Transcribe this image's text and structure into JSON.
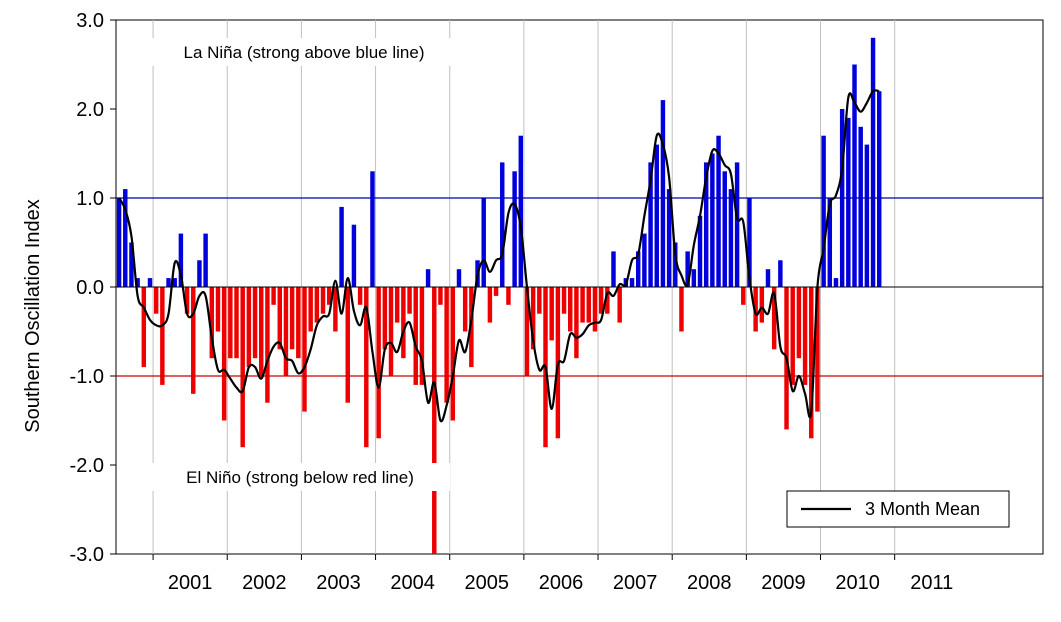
{
  "chart_data": {
    "type": "bar",
    "title": "",
    "ylabel": "Southern Oscillation Index",
    "xlabel": "",
    "ylim": [
      -3.0,
      3.0
    ],
    "yticks": [
      "3.0",
      "2.0",
      "1.0",
      "0.0",
      "-1.0",
      "-2.0",
      "-3.0"
    ],
    "ytick_values": [
      3,
      2,
      1,
      0,
      -1,
      -2,
      -3
    ],
    "xticks": [
      "2001",
      "2002",
      "2003",
      "2004",
      "2005",
      "2006",
      "2007",
      "2008",
      "2009",
      "2010",
      "2011"
    ],
    "start": "2000-07",
    "months_shown": 150,
    "grid_vertical": true,
    "grid_horizontal": false,
    "positive_color": "#0000dd",
    "negative_color": "#ee0000",
    "threshold_lines": [
      {
        "value": 1.0,
        "color": "#0000aa"
      },
      {
        "value": -1.0,
        "color": "#cc0000"
      }
    ],
    "annotations": {
      "la_nina": "La Niña (strong above blue line)",
      "el_nino": "El Niño (strong below red line)"
    },
    "legend": {
      "label": "3 Month Mean",
      "position": "bottom-right",
      "color": "#000000"
    },
    "monthly_values": [
      1.0,
      1.1,
      0.5,
      0.1,
      -0.9,
      0.1,
      -0.3,
      -1.1,
      0.1,
      0.1,
      0.6,
      -0.3,
      -1.2,
      0.3,
      0.6,
      -0.8,
      -0.5,
      -1.5,
      -0.8,
      -0.8,
      -1.8,
      -0.9,
      -0.8,
      -1.0,
      -1.3,
      -0.2,
      -0.7,
      -1.0,
      -0.7,
      -0.8,
      -1.4,
      -0.5,
      -0.4,
      -0.3,
      -0.2,
      -0.5,
      0.9,
      -1.3,
      0.7,
      -0.2,
      -1.8,
      1.3,
      -1.7,
      -0.7,
      -1.0,
      -0.4,
      -0.8,
      -0.3,
      -1.1,
      -1.1,
      0.2,
      -3.0,
      -0.2,
      -1.3,
      -1.5,
      0.2,
      -0.5,
      -0.9,
      0.3,
      1.0,
      -0.4,
      -0.1,
      1.4,
      -0.2,
      1.3,
      1.7,
      -1.0,
      -0.7,
      -0.3,
      -1.8,
      -0.6,
      -1.7,
      -0.3,
      -0.5,
      -0.8,
      -0.4,
      -0.4,
      -0.5,
      -0.3,
      -0.3,
      0.4,
      -0.4,
      0.1,
      0.1,
      0.4,
      0.6,
      1.4,
      1.6,
      2.1,
      1.1,
      0.5,
      -0.5,
      0.4,
      0.2,
      0.8,
      1.4,
      1.5,
      1.7,
      1.3,
      1.1,
      1.4,
      -0.2,
      1.0,
      -0.5,
      -0.4,
      0.2,
      -0.7,
      0.3,
      -1.6,
      -1.1,
      -0.8,
      -1.1,
      -1.7,
      -1.4,
      1.7,
      1.0,
      0.1,
      2.0,
      1.9,
      2.5,
      1.8,
      1.6,
      2.8,
      2.2
    ],
    "three_month_mean": [
      1.0,
      0.87,
      0.57,
      -0.1,
      -0.23,
      -0.37,
      -0.43,
      -0.43,
      -0.3,
      0.27,
      0.13,
      -0.3,
      -0.3,
      -0.1,
      -0.1,
      -0.57,
      -0.93,
      -0.93,
      -1.03,
      -1.13,
      -1.17,
      -0.9,
      -0.9,
      -1.03,
      -0.83,
      -0.67,
      -0.63,
      -0.8,
      -0.83,
      -0.97,
      -0.9,
      -0.7,
      -0.43,
      -0.33,
      -0.3,
      0.07,
      -0.3,
      0.1,
      -0.27,
      -0.43,
      -0.23,
      -0.73,
      -1.13,
      -0.7,
      -0.63,
      -0.73,
      -0.5,
      -0.4,
      -0.67,
      -0.83,
      -1.3,
      -1.07,
      -1.5,
      -1.33,
      -1.0,
      -0.6,
      -0.73,
      -0.37,
      0.13,
      0.3,
      0.17,
      0.3,
      0.37,
      0.83,
      0.93,
      0.67,
      0.0,
      -0.6,
      -0.93,
      -0.9,
      -1.37,
      -0.87,
      -0.83,
      -0.53,
      -0.57,
      -0.53,
      -0.43,
      -0.4,
      -0.37,
      -0.07,
      -0.1,
      0.03,
      0.03,
      0.3,
      0.37,
      0.8,
      1.2,
      1.7,
      1.6,
      1.23,
      0.37,
      0.13,
      0.03,
      0.47,
      0.8,
      1.23,
      1.53,
      1.5,
      1.37,
      1.27,
      0.77,
      0.73,
      0.1,
      -0.3,
      -0.23,
      -0.3,
      -0.07,
      -0.67,
      -0.8,
      -1.17,
      -1.0,
      -1.2,
      -1.4,
      0.0,
      0.43,
      0.93,
      1.03,
      1.33,
      2.13,
      2.07,
      1.97,
      2.07,
      2.2,
      2.2
    ]
  }
}
